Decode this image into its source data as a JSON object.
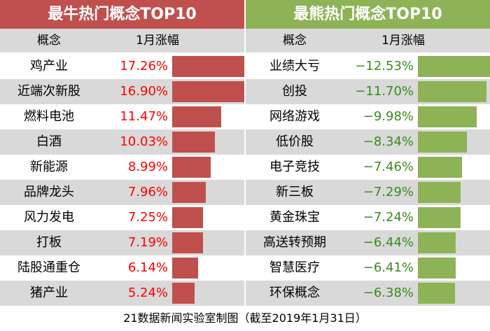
{
  "chart_data": [
    {
      "type": "bar",
      "title": "最牛热门概念TOP10",
      "columns": [
        "概念",
        "1月涨幅"
      ],
      "categories": [
        "鸡产业",
        "近端次新股",
        "燃料电池",
        "白酒",
        "新能源",
        "品牌龙头",
        "风力发电",
        "打板",
        "陆股通重仓",
        "猪产业"
      ],
      "values": [
        17.26,
        16.9,
        11.47,
        10.03,
        8.99,
        7.96,
        7.25,
        7.19,
        6.14,
        5.24
      ],
      "labels": [
        "17.26%",
        "16.90%",
        "11.47%",
        "10.03%",
        "8.99%",
        "7.96%",
        "7.25%",
        "7.19%",
        "6.14%",
        "5.24%"
      ],
      "color": "#c0504d"
    },
    {
      "type": "bar",
      "title": "最熊热门概念TOP10",
      "columns": [
        "概念",
        "1月涨幅"
      ],
      "categories": [
        "业绩大亏",
        "创投",
        "网络游戏",
        "低价股",
        "电子竞技",
        "新三板",
        "黄金珠宝",
        "高送转预期",
        "智慧医疗",
        "环保概念"
      ],
      "values": [
        -12.53,
        -11.7,
        -9.98,
        -8.34,
        -7.46,
        -7.29,
        -7.24,
        -6.44,
        -6.41,
        -6.38
      ],
      "labels": [
        "−12.53%",
        "−11.70%",
        "−9.98%",
        "−8.34%",
        "−7.46%",
        "−7.29%",
        "−7.24%",
        "−6.44%",
        "−6.41%",
        "−6.38%"
      ],
      "color": "#8db356"
    }
  ],
  "footer": "21数据新闻实验室制图（截至2019年1月31日）"
}
